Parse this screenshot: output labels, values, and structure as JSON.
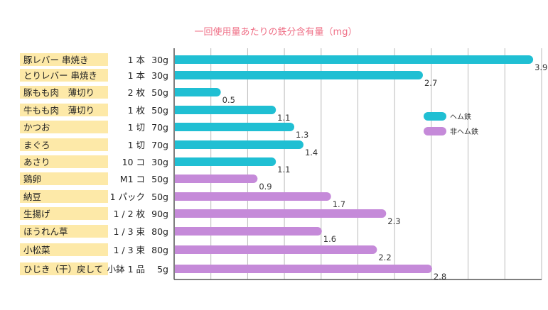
{
  "chart_data": {
    "type": "bar",
    "orientation": "horizontal",
    "title": "一回使用量あたりの鉄分含有量（mg）",
    "xlim": [
      0,
      4
    ],
    "grid": true,
    "legend_placement": "right",
    "categories": [
      {
        "food": "豚レバー 串焼き",
        "portion": "1 本",
        "grams": "30g",
        "value": 3.9,
        "label": "3.9",
        "type": "heme"
      },
      {
        "food": "とりレバー 串焼き",
        "portion": "1 本",
        "grams": "30g",
        "value": 2.7,
        "label": "2.7",
        "type": "heme"
      },
      {
        "food": "豚もも肉　薄切り",
        "portion": "2 枚",
        "grams": "50g",
        "value": 0.5,
        "label": "0.5",
        "type": "heme"
      },
      {
        "food": "牛もも肉　薄切り",
        "portion": "1 枚",
        "grams": "50g",
        "value": 1.1,
        "label": "1.1",
        "type": "heme"
      },
      {
        "food": "かつお",
        "portion": "1 切",
        "grams": "70g",
        "value": 1.3,
        "label": "1.3",
        "type": "heme"
      },
      {
        "food": "まぐろ",
        "portion": "1 切",
        "grams": "70g",
        "value": 1.4,
        "label": "1.4",
        "type": "heme"
      },
      {
        "food": "あさり",
        "portion": "10 コ",
        "grams": "30g",
        "value": 1.1,
        "label": "1.1",
        "type": "heme"
      },
      {
        "food": "鶏卵",
        "portion": "M1 コ",
        "grams": "50g",
        "value": 0.9,
        "label": "0.9",
        "type": "nonheme"
      },
      {
        "food": "納豆",
        "portion": "1 パック",
        "grams": "50g",
        "value": 1.7,
        "label": "1.7",
        "type": "nonheme"
      },
      {
        "food": "生揚げ",
        "portion": "1 / 2 枚",
        "grams": "90g",
        "value": 2.3,
        "label": "2.3",
        "type": "nonheme"
      },
      {
        "food": "ほうれん草",
        "portion": "1 / 3 束",
        "grams": "80g",
        "value": 1.6,
        "label": "1.6",
        "type": "nonheme"
      },
      {
        "food": "小松菜",
        "portion": "1 / 3 束",
        "grams": "80g",
        "value": 2.2,
        "label": "2.2",
        "type": "nonheme"
      },
      {
        "food": "ひじき（干）戻して",
        "portion": "小鉢 1 品",
        "grams": "5g",
        "value": 2.8,
        "label": "2.8",
        "type": "nonheme"
      }
    ],
    "series": [
      {
        "key": "heme",
        "name": "ヘム鉄",
        "color": "#20bfd3"
      },
      {
        "key": "nonheme",
        "name": "非ヘム鉄",
        "color": "#c58ad9"
      }
    ],
    "colors": {
      "label_bg": "#fde9a8",
      "title": "#ef6f86",
      "grid": "#bbbbbb",
      "axis": "#555555"
    }
  }
}
